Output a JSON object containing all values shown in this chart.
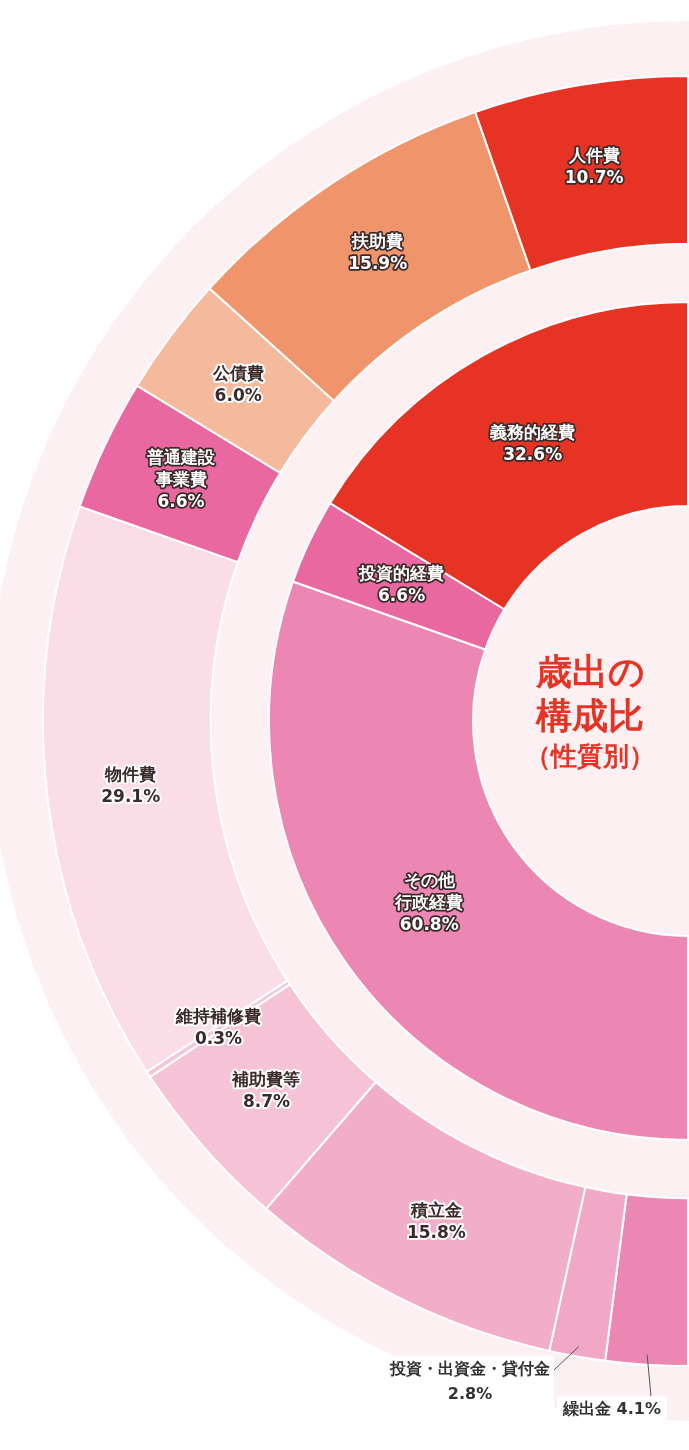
{
  "chart_data": [
    {
      "type": "donut",
      "legend": false,
      "data_labels": true,
      "categories": [
        "人件費",
        "扶助費",
        "公債費",
        "普通建設事業費",
        "物件費",
        "維持補修費",
        "補助費等",
        "積立金",
        "投資・出資金・貸付金",
        "繰出金"
      ],
      "values": [
        10.7,
        15.9,
        6.0,
        6.6,
        29.1,
        0.3,
        8.7,
        15.8,
        2.8,
        4.1
      ],
      "value_labels": [
        "10.7%",
        "15.9%",
        "6.0%",
        "6.6%",
        "29.1%",
        "0.3%",
        "8.7%",
        "15.8%",
        "2.8%",
        "4.1%"
      ],
      "colors": [
        "#e63323",
        "#f0946c",
        "#f5b99b",
        "#e8689f",
        "#fadde6",
        "#f5c6d6",
        "#f5c2d6",
        "#f2adc8",
        "#f0a8c6",
        "#ec87b3"
      ]
    },
    {
      "type": "donut",
      "title": "歳出の構成比",
      "subtitle": "（性質別）",
      "legend": false,
      "data_labels": true,
      "categories": [
        "義務的経費",
        "投資的経費",
        "その他行政経費"
      ],
      "values": [
        32.6,
        6.6,
        60.8
      ],
      "value_labels": [
        "32.6%",
        "6.6%",
        "60.8%"
      ],
      "colors": [
        "#e63323",
        "#e8689f",
        "#ec87b3"
      ]
    }
  ]
}
